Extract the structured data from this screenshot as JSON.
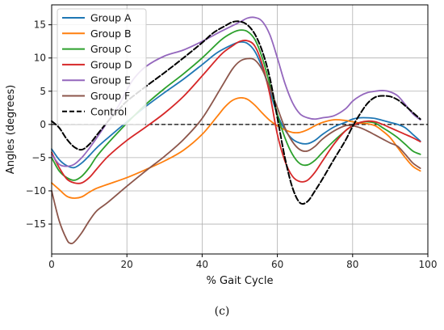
{
  "caption": "(c)",
  "chart_data": {
    "type": "line",
    "xlabel": "% Gait Cycle",
    "ylabel": "Angles (degrees)",
    "xlim": [
      0,
      100
    ],
    "ylim": [
      -19.5,
      18
    ],
    "xticks": [
      0,
      20,
      40,
      60,
      80,
      100
    ],
    "yticks": [
      -15,
      -10,
      -5,
      0,
      5,
      10,
      15
    ],
    "grid": true,
    "legend_position": "top-left",
    "reference_line": {
      "y": 0,
      "style": "dashed",
      "color": "#000000"
    },
    "series": [
      {
        "name": "Group A",
        "color": "#1f77b4",
        "dashed": false,
        "x": [
          0,
          2,
          4,
          6,
          8,
          10,
          12,
          15,
          20,
          25,
          30,
          35,
          40,
          44,
          48,
          50,
          52,
          54,
          56,
          58,
          60,
          62,
          64,
          66,
          68,
          70,
          72,
          75,
          78,
          80,
          82,
          84,
          86,
          88,
          90,
          92,
          94,
          96,
          98
        ],
        "y": [
          -3.7,
          -5.3,
          -6.2,
          -6.5,
          -5.8,
          -4.7,
          -3.5,
          -2.0,
          0.4,
          2.7,
          4.8,
          6.8,
          9.0,
          10.8,
          12.0,
          12.4,
          12.2,
          11.0,
          8.5,
          5.0,
          1.5,
          -0.8,
          -2.2,
          -2.8,
          -2.9,
          -2.4,
          -1.5,
          -0.4,
          0.3,
          0.8,
          1.0,
          1.0,
          0.9,
          0.6,
          0.3,
          0.0,
          -0.5,
          -1.5,
          -2.5
        ]
      },
      {
        "name": "Group B",
        "color": "#ff7f0e",
        "dashed": false,
        "x": [
          0,
          2,
          4,
          6,
          8,
          10,
          12,
          15,
          20,
          25,
          30,
          35,
          40,
          44,
          46,
          48,
          50,
          52,
          54,
          56,
          58,
          60,
          62,
          64,
          66,
          68,
          70,
          72,
          75,
          78,
          80,
          82,
          84,
          86,
          88,
          90,
          92,
          94,
          96,
          98
        ],
        "y": [
          -8.8,
          -9.8,
          -10.8,
          -11.1,
          -10.9,
          -10.2,
          -9.6,
          -9.0,
          -8.0,
          -6.8,
          -5.5,
          -3.9,
          -1.5,
          1.2,
          2.6,
          3.6,
          4.0,
          3.8,
          2.9,
          1.7,
          0.6,
          -0.2,
          -0.8,
          -1.2,
          -1.2,
          -0.8,
          -0.2,
          0.3,
          0.7,
          0.6,
          0.4,
          0.2,
          0.1,
          -0.2,
          -1.0,
          -2.0,
          -3.5,
          -5.0,
          -6.3,
          -7.0
        ]
      },
      {
        "name": "Group C",
        "color": "#2ca02c",
        "dashed": false,
        "x": [
          0,
          2,
          4,
          6,
          8,
          10,
          12,
          15,
          20,
          25,
          30,
          35,
          40,
          45,
          48,
          50,
          52,
          54,
          56,
          58,
          60,
          62,
          64,
          66,
          68,
          70,
          72,
          75,
          78,
          80,
          82,
          84,
          86,
          88,
          90,
          92,
          94,
          96,
          98
        ],
        "y": [
          -5.0,
          -7.0,
          -8.0,
          -8.4,
          -7.8,
          -6.5,
          -4.8,
          -2.8,
          0.2,
          3.0,
          5.4,
          7.6,
          10.0,
          12.7,
          13.8,
          14.2,
          14.0,
          12.8,
          10.0,
          6.0,
          1.5,
          -2.0,
          -4.5,
          -5.9,
          -6.1,
          -5.4,
          -4.2,
          -2.5,
          -1.0,
          -0.2,
          0.3,
          0.4,
          0.2,
          -0.5,
          -1.2,
          -2.0,
          -3.0,
          -4.0,
          -4.5
        ]
      },
      {
        "name": "Group D",
        "color": "#d62728",
        "dashed": false,
        "x": [
          0,
          2,
          4,
          6,
          8,
          10,
          12,
          15,
          20,
          25,
          30,
          35,
          40,
          45,
          48,
          50,
          52,
          54,
          56,
          58,
          60,
          62,
          64,
          66,
          68,
          70,
          72,
          75,
          78,
          80,
          82,
          84,
          86,
          88,
          90,
          92,
          94,
          96,
          98
        ],
        "y": [
          -4.2,
          -6.5,
          -8.2,
          -8.8,
          -8.8,
          -8.0,
          -6.7,
          -4.8,
          -2.4,
          -0.4,
          1.7,
          4.2,
          7.3,
          10.5,
          11.8,
          12.5,
          12.6,
          11.8,
          9.0,
          4.5,
          -1.5,
          -5.5,
          -7.8,
          -8.6,
          -8.4,
          -7.2,
          -5.5,
          -3.0,
          -1.0,
          -0.2,
          0.3,
          0.5,
          0.4,
          0.0,
          -0.5,
          -1.0,
          -1.5,
          -2.0,
          -2.6
        ]
      },
      {
        "name": "Group E",
        "color": "#9467bd",
        "dashed": false,
        "x": [
          0,
          2,
          4,
          6,
          8,
          10,
          12,
          15,
          18,
          20,
          22,
          25,
          30,
          35,
          40,
          45,
          50,
          52,
          54,
          56,
          58,
          60,
          62,
          64,
          66,
          68,
          70,
          72,
          75,
          78,
          80,
          82,
          84,
          86,
          88,
          90,
          92,
          94,
          96,
          98
        ],
        "y": [
          -4.5,
          -6.0,
          -6.3,
          -6.0,
          -5.0,
          -3.6,
          -2.0,
          0.5,
          3.0,
          5.2,
          7.0,
          8.7,
          10.3,
          11.2,
          12.5,
          14.0,
          15.4,
          16.0,
          16.1,
          15.5,
          13.5,
          10.0,
          6.2,
          3.3,
          1.6,
          1.0,
          0.8,
          1.0,
          1.3,
          2.3,
          3.5,
          4.3,
          4.8,
          5.0,
          5.1,
          4.9,
          4.3,
          3.0,
          1.6,
          0.7
        ]
      },
      {
        "name": "Group F",
        "color": "#8c564b",
        "dashed": false,
        "x": [
          0,
          2,
          4,
          5,
          6,
          8,
          10,
          12,
          15,
          20,
          25,
          30,
          35,
          40,
          45,
          48,
          50,
          52,
          54,
          56,
          58,
          60,
          62,
          64,
          66,
          68,
          70,
          72,
          75,
          78,
          80,
          82,
          84,
          86,
          88,
          90,
          92,
          94,
          96,
          98
        ],
        "y": [
          -10.0,
          -14.5,
          -17.3,
          -17.9,
          -17.7,
          -16.3,
          -14.5,
          -13.0,
          -11.7,
          -9.3,
          -7.0,
          -4.8,
          -2.3,
          0.9,
          5.5,
          8.3,
          9.5,
          9.9,
          9.7,
          8.2,
          5.5,
          2.5,
          -0.5,
          -2.6,
          -3.8,
          -4.0,
          -3.3,
          -2.2,
          -1.0,
          -0.2,
          -0.2,
          -0.5,
          -1.0,
          -1.6,
          -2.2,
          -2.8,
          -3.3,
          -4.5,
          -5.8,
          -6.6
        ]
      },
      {
        "name": "Control",
        "color": "#000000",
        "dashed": true,
        "x": [
          0,
          2,
          4,
          6,
          8,
          10,
          12,
          15,
          18,
          20,
          25,
          30,
          35,
          40,
          43,
          46,
          48,
          50,
          52,
          54,
          56,
          58,
          60,
          62,
          64,
          66,
          68,
          70,
          72,
          75,
          78,
          80,
          82,
          84,
          86,
          88,
          90,
          92,
          94,
          96,
          98
        ],
        "y": [
          0.5,
          -0.5,
          -2.2,
          -3.4,
          -3.8,
          -3.0,
          -1.6,
          0.5,
          2.3,
          3.5,
          5.7,
          7.8,
          10.0,
          12.3,
          13.8,
          14.8,
          15.4,
          15.5,
          15.0,
          13.6,
          11.0,
          7.0,
          1.0,
          -5.0,
          -9.5,
          -11.8,
          -11.6,
          -10.0,
          -8.2,
          -5.3,
          -2.5,
          -0.3,
          1.6,
          3.2,
          4.1,
          4.3,
          4.2,
          3.7,
          2.8,
          1.8,
          0.8
        ]
      }
    ]
  }
}
